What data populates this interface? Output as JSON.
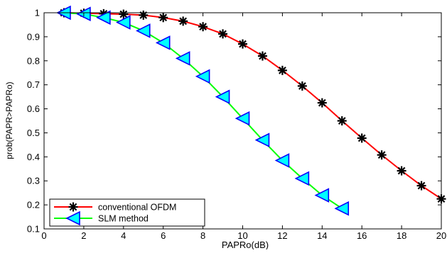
{
  "chart_data": {
    "type": "line",
    "xlabel": "PAPRo(dB)",
    "ylabel": "prob(PAPR>PAPRo)",
    "xlim": [
      0,
      20
    ],
    "ylim": [
      0.1,
      1
    ],
    "xticks": [
      0,
      2,
      4,
      6,
      8,
      10,
      12,
      14,
      16,
      18,
      20
    ],
    "yticks": [
      0.1,
      0.2,
      0.3,
      0.4,
      0.5,
      0.6,
      0.7,
      0.8,
      0.9,
      1
    ],
    "ytick_labels": [
      "0.1",
      "0.2",
      "0.3",
      "0.4",
      "0.5",
      "0.6",
      "0.7",
      "0.8",
      "0.9",
      "1"
    ],
    "grid": false,
    "legend_position": "bottom-left",
    "series": [
      {
        "name": "conventional OFDM",
        "color": "#ff0000",
        "marker": "asterisk",
        "marker_color": "#000000",
        "x": [
          1,
          2,
          3,
          4,
          5,
          6,
          7,
          8,
          9,
          10,
          11,
          12,
          13,
          14,
          15,
          16,
          17,
          18,
          19,
          20
        ],
        "y": [
          1.0,
          0.998,
          0.996,
          0.994,
          0.99,
          0.98,
          0.965,
          0.942,
          0.912,
          0.87,
          0.82,
          0.76,
          0.695,
          0.625,
          0.55,
          0.478,
          0.408,
          0.342,
          0.28,
          0.225
        ]
      },
      {
        "name": "SLM method",
        "color": "#00ff00",
        "marker": "triangle-left",
        "marker_color": "#0000ff",
        "marker_fill": "#00ffff",
        "x": [
          1,
          2,
          3,
          4,
          5,
          6,
          7,
          8,
          9,
          10,
          11,
          12,
          13,
          14,
          15
        ],
        "y": [
          1.0,
          0.995,
          0.98,
          0.96,
          0.925,
          0.875,
          0.81,
          0.735,
          0.65,
          0.56,
          0.47,
          0.385,
          0.31,
          0.24,
          0.185
        ]
      }
    ]
  }
}
